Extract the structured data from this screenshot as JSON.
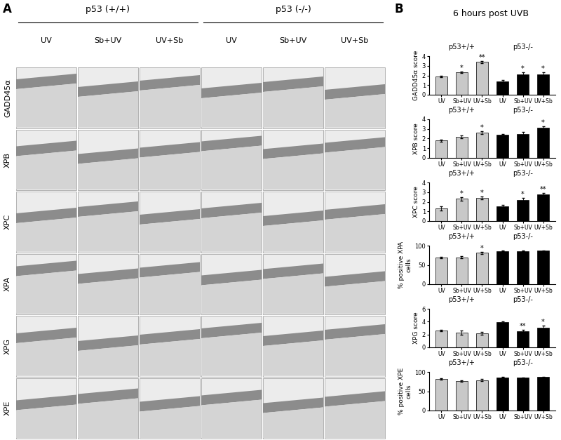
{
  "panel_a": {
    "label": "A",
    "groups": [
      "p53 (+/+)",
      "p53 (-/-)"
    ],
    "columns": [
      "UV",
      "Sb+UV",
      "UV+Sb",
      "UV",
      "Sb+UV",
      "UV+Sb"
    ],
    "rows": [
      "GADD45α",
      "XPB",
      "XPC",
      "XPA",
      "XPG",
      "XPE"
    ]
  },
  "panel_b": {
    "label": "B",
    "title": "6 hours post UVB"
  },
  "chart_data": [
    {
      "type": "bar",
      "ylabel": "GADD45α score",
      "categories": [
        "UV",
        "Sb+UV",
        "UV+Sb",
        "UV",
        "Sb+UV",
        "UV+Sb"
      ],
      "ylim": [
        0,
        4
      ],
      "yticks": [
        0,
        1,
        2,
        3,
        4
      ],
      "series": [
        {
          "name": "p53+/+",
          "color": "#c8c8c8",
          "values": [
            1.9,
            2.3,
            3.4,
            null,
            null,
            null
          ],
          "errors": [
            0.1,
            0.08,
            0.1,
            null,
            null,
            null
          ],
          "significance": [
            null,
            "*",
            "**",
            null,
            null,
            null
          ]
        },
        {
          "name": "p53-/-",
          "color": "#000000",
          "values": [
            null,
            null,
            null,
            1.4,
            2.1,
            2.1
          ],
          "errors": [
            null,
            null,
            null,
            0.15,
            0.2,
            0.2
          ],
          "significance": [
            null,
            null,
            null,
            null,
            "*",
            "*"
          ]
        }
      ]
    },
    {
      "type": "bar",
      "ylabel": "XPB score",
      "categories": [
        "UV",
        "Sb+UV",
        "UV+Sb",
        "UV",
        "Sb+UV",
        "UV+Sb"
      ],
      "ylim": [
        0,
        4
      ],
      "yticks": [
        0,
        1,
        2,
        3,
        4
      ],
      "series": [
        {
          "name": "p53+/+",
          "color": "#c8c8c8",
          "values": [
            1.8,
            2.2,
            2.6,
            null,
            null,
            null
          ],
          "errors": [
            0.1,
            0.15,
            0.15,
            null,
            null,
            null
          ],
          "significance": [
            null,
            null,
            "*",
            null,
            null,
            null
          ]
        },
        {
          "name": "p53-/-",
          "color": "#000000",
          "values": [
            null,
            null,
            null,
            2.4,
            2.5,
            3.1
          ],
          "errors": [
            null,
            null,
            null,
            0.1,
            0.2,
            0.2
          ],
          "significance": [
            null,
            null,
            null,
            null,
            null,
            "*"
          ]
        }
      ]
    },
    {
      "type": "bar",
      "ylabel": "XPC score",
      "categories": [
        "UV",
        "Sb+UV",
        "UV+Sb",
        "UV",
        "Sb+UV",
        "UV+Sb"
      ],
      "ylim": [
        0,
        4
      ],
      "yticks": [
        0,
        1,
        2,
        3,
        4
      ],
      "series": [
        {
          "name": "p53+/+",
          "color": "#c8c8c8",
          "values": [
            1.3,
            2.3,
            2.4,
            null,
            null,
            null
          ],
          "errors": [
            0.2,
            0.2,
            0.15,
            null,
            null,
            null
          ],
          "significance": [
            null,
            "*",
            "*",
            null,
            null,
            null
          ]
        },
        {
          "name": "p53-/-",
          "color": "#000000",
          "values": [
            null,
            null,
            null,
            1.5,
            2.2,
            2.8
          ],
          "errors": [
            null,
            null,
            null,
            0.15,
            0.2,
            0.1
          ],
          "significance": [
            null,
            null,
            null,
            null,
            "*",
            "**"
          ]
        }
      ]
    },
    {
      "type": "bar",
      "ylabel": "% positive XPA cells",
      "categories": [
        "UV",
        "Sb+UV",
        "UV+Sb",
        "UV",
        "Sb+UV",
        "UV+Sb"
      ],
      "ylim": [
        0,
        100
      ],
      "yticks": [
        0,
        50,
        100
      ],
      "series": [
        {
          "name": "p53+/+",
          "color": "#c8c8c8",
          "values": [
            69,
            70,
            81,
            null,
            null,
            null
          ],
          "errors": [
            2,
            3,
            2,
            null,
            null,
            null
          ],
          "significance": [
            null,
            null,
            "*",
            null,
            null,
            null
          ]
        },
        {
          "name": "p53-/-",
          "color": "#000000",
          "values": [
            null,
            null,
            null,
            86,
            86,
            87
          ],
          "errors": [
            null,
            null,
            null,
            1,
            1,
            1
          ],
          "significance": [
            null,
            null,
            null,
            null,
            null,
            null
          ]
        }
      ]
    },
    {
      "type": "bar",
      "ylabel": "XPG score",
      "categories": [
        "UV",
        "Sb+UV",
        "UV+Sb",
        "UV",
        "Sb+UV",
        "UV+Sb"
      ],
      "ylim": [
        0,
        6
      ],
      "yticks": [
        0,
        2,
        4,
        6
      ],
      "series": [
        {
          "name": "p53+/+",
          "color": "#c8c8c8",
          "values": [
            2.6,
            2.3,
            2.2,
            null,
            null,
            null
          ],
          "errors": [
            0.1,
            0.3,
            0.2,
            null,
            null,
            null
          ],
          "significance": [
            null,
            null,
            null,
            null,
            null,
            null
          ]
        },
        {
          "name": "p53-/-",
          "color": "#000000",
          "values": [
            null,
            null,
            null,
            3.9,
            2.5,
            3.1
          ],
          "errors": [
            null,
            null,
            null,
            0.1,
            0.2,
            0.3
          ],
          "significance": [
            null,
            null,
            null,
            null,
            "**",
            "*"
          ]
        }
      ]
    },
    {
      "type": "bar",
      "ylabel": "% positive XPE cells",
      "categories": [
        "UV",
        "Sb+UV",
        "UV+Sb",
        "UV",
        "Sb+UV",
        "UV+Sb"
      ],
      "ylim": [
        0,
        100
      ],
      "yticks": [
        0,
        50,
        100
      ],
      "series": [
        {
          "name": "p53+/+",
          "color": "#c8c8c8",
          "values": [
            82,
            76,
            79,
            null,
            null,
            null
          ],
          "errors": [
            2,
            2,
            2,
            null,
            null,
            null
          ],
          "significance": [
            null,
            null,
            null,
            null,
            null,
            null
          ]
        },
        {
          "name": "p53-/-",
          "color": "#000000",
          "values": [
            null,
            null,
            null,
            86,
            85,
            87
          ],
          "errors": [
            null,
            null,
            null,
            1,
            1,
            1
          ],
          "significance": [
            null,
            null,
            null,
            null,
            null,
            null
          ]
        }
      ]
    }
  ]
}
